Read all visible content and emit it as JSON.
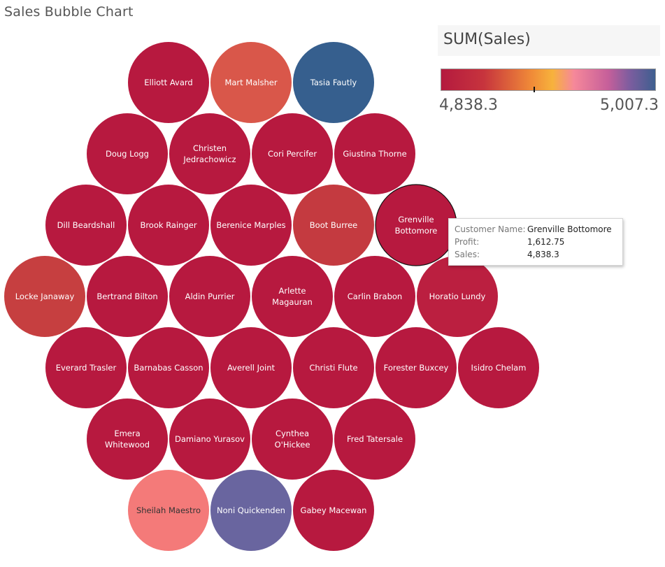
{
  "title": "Sales Bubble Chart",
  "legend": {
    "title": "SUM(Sales)",
    "min_label": "4,838.3",
    "max_label": "5,007.3",
    "marker_value": 4912.0
  },
  "tooltip": {
    "rows": [
      {
        "key": "Customer Name:",
        "value": "Grenville Bottomore"
      },
      {
        "key": "Profit:",
        "value": "1,612.75"
      },
      {
        "key": "Sales:",
        "value": "4,838.3"
      }
    ]
  },
  "chart_data": {
    "type": "bubble",
    "measure": "SUM(Sales)",
    "color_range": [
      4838.3,
      5007.3
    ],
    "highlighted": "Grenville Bottomore",
    "points": [
      {
        "name": "Elliott Avard",
        "color": "#b7193f"
      },
      {
        "name": "Mart Malsher",
        "color": "#d9574a"
      },
      {
        "name": "Tasia Fautly",
        "color": "#365f8e"
      },
      {
        "name": "Doug Logg",
        "color": "#b7193f"
      },
      {
        "name": "Christen Jedrachowicz",
        "color": "#b7193f"
      },
      {
        "name": "Cori Percifer",
        "color": "#b7193f"
      },
      {
        "name": "Giustina Thorne",
        "color": "#b7193f"
      },
      {
        "name": "Dill Beardshall",
        "color": "#b7193f"
      },
      {
        "name": "Brook Rainger",
        "color": "#b7193f"
      },
      {
        "name": "Berenice Marples",
        "color": "#b7193f"
      },
      {
        "name": "Boot Burree",
        "color": "#c43a40"
      },
      {
        "name": "Grenville Bottomore",
        "color": "#b7193f"
      },
      {
        "name": "Locke Janaway",
        "color": "#c63f40"
      },
      {
        "name": "Bertrand Bilton",
        "color": "#b7193f"
      },
      {
        "name": "Aldin Purrier",
        "color": "#b7193f"
      },
      {
        "name": "Arlette Magauran",
        "color": "#b7193f"
      },
      {
        "name": "Carlin Brabon",
        "color": "#b7193f"
      },
      {
        "name": "Horatio Lundy",
        "color": "#bb1f40"
      },
      {
        "name": "Everard Trasler",
        "color": "#b7193f"
      },
      {
        "name": "Barnabas Casson",
        "color": "#b7193f"
      },
      {
        "name": "Averell Joint",
        "color": "#b7193f"
      },
      {
        "name": "Christi Flute",
        "color": "#b7193f"
      },
      {
        "name": "Forester Buxcey",
        "color": "#b7193f"
      },
      {
        "name": "Isidro Chelam",
        "color": "#b7193f"
      },
      {
        "name": "Emera Whitewood",
        "color": "#b7193f"
      },
      {
        "name": "Damiano Yurasov",
        "color": "#b7193f"
      },
      {
        "name": "Cynthea O'Hickee",
        "color": "#b7193f"
      },
      {
        "name": "Fred Tatersale",
        "color": "#b7193f"
      },
      {
        "name": "Sheilah Maestro",
        "color": "#f47a79"
      },
      {
        "name": "Noni Quickenden",
        "color": "#69659f"
      },
      {
        "name": "Gabey Macewan",
        "color": "#b7193f"
      }
    ]
  }
}
